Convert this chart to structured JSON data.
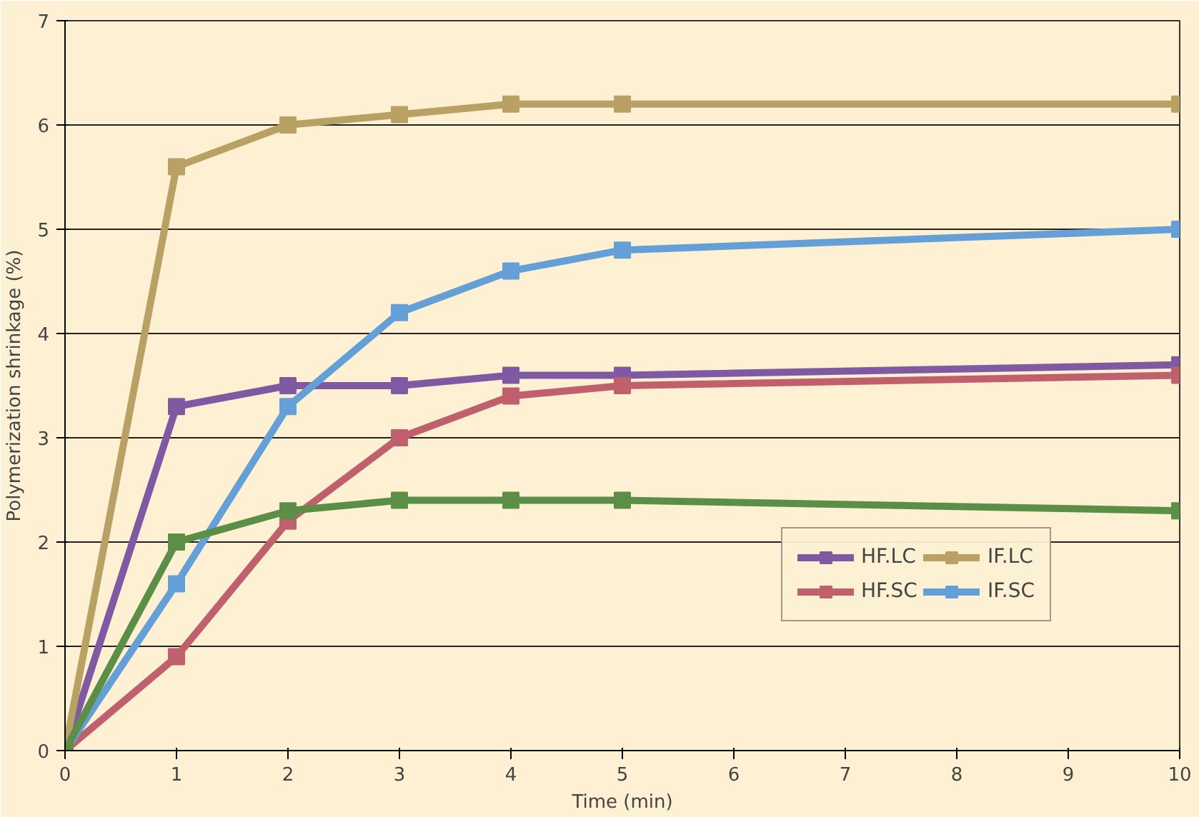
{
  "chart_data": {
    "type": "line",
    "xlabel": "Time (min)",
    "ylabel": "Polymerization shrinkage (%)",
    "x": [
      0,
      1,
      2,
      3,
      4,
      5,
      10
    ],
    "xlim": [
      0,
      10
    ],
    "xticks": [
      0,
      1,
      2,
      3,
      4,
      5,
      6,
      7,
      8,
      9,
      10
    ],
    "ylim": [
      0,
      7
    ],
    "yticks": [
      0,
      1,
      2,
      3,
      4,
      5,
      6,
      7
    ],
    "grid": "y",
    "legend": "bottom right",
    "marker": "square",
    "line_style": "solid",
    "series": [
      {
        "name": "HF.LC",
        "color": "#7f5aa2",
        "values": [
          0,
          3.3,
          3.5,
          3.5,
          3.6,
          3.6,
          3.7
        ]
      },
      {
        "name": "HF.SC",
        "color": "#c0606d",
        "values": [
          0,
          0.9,
          2.2,
          3.0,
          3.4,
          3.5,
          3.6
        ]
      },
      {
        "name": "IF.LC",
        "color": "#b9a064",
        "values": [
          0,
          5.6,
          6.0,
          6.1,
          6.2,
          6.2,
          6.2
        ]
      },
      {
        "name": "IF.SC",
        "color": "#659fd8",
        "values": [
          0,
          1.6,
          3.3,
          4.2,
          4.6,
          4.8,
          5.0
        ]
      },
      {
        "color": "#5b8f48",
        "values": [
          0,
          2.0,
          2.3,
          2.4,
          2.4,
          2.4,
          2.3
        ]
      }
    ]
  }
}
